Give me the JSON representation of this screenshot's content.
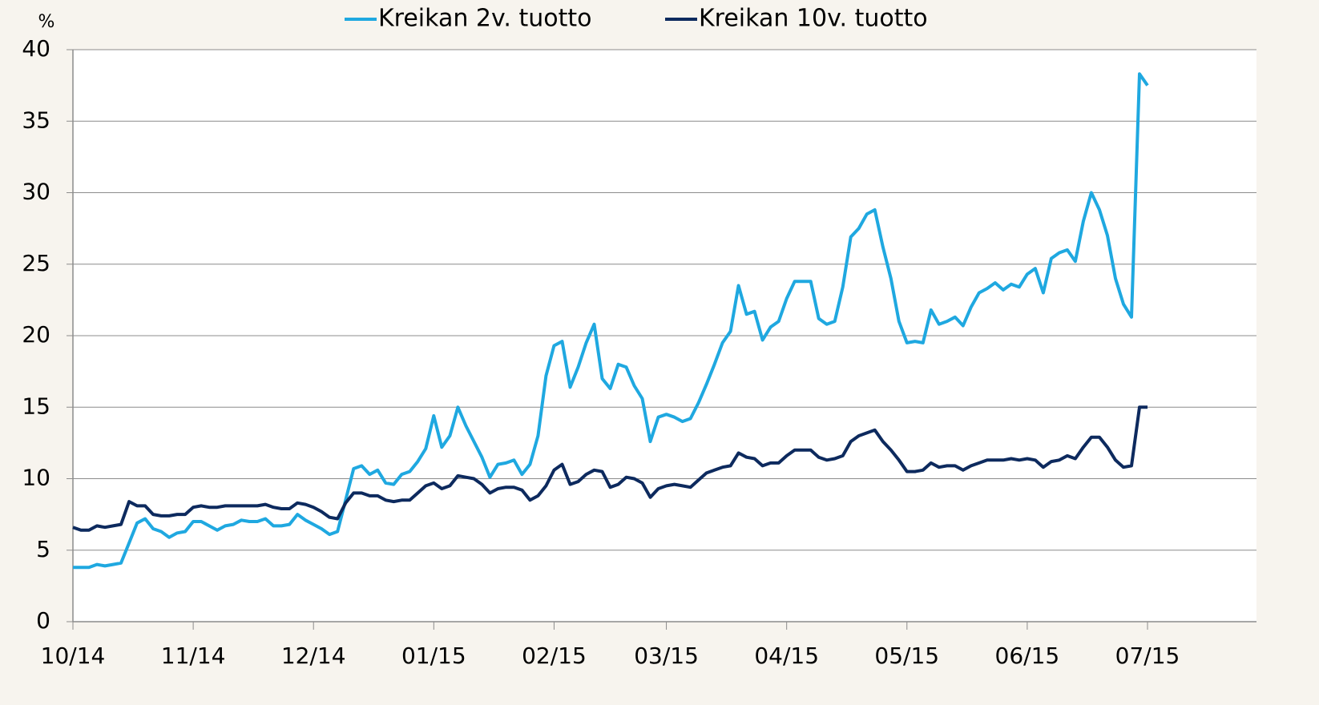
{
  "chart_data": {
    "type": "line",
    "ylabel": "%",
    "legend": "top",
    "grid": true,
    "ylim": [
      0,
      40
    ],
    "yticks": [
      0,
      5,
      10,
      15,
      20,
      25,
      30,
      35,
      40
    ],
    "categories": [
      "10/14",
      null,
      null,
      null,
      null,
      null,
      null,
      null,
      null,
      null,
      null,
      null,
      null,
      null,
      null,
      "11/14",
      null,
      null,
      null,
      null,
      null,
      null,
      null,
      null,
      null,
      null,
      null,
      null,
      null,
      null,
      "12/14",
      null,
      null,
      null,
      null,
      null,
      null,
      null,
      null,
      null,
      null,
      null,
      null,
      null,
      null,
      "01/15",
      null,
      null,
      null,
      null,
      null,
      null,
      null,
      null,
      null,
      null,
      null,
      null,
      null,
      null,
      "02/15",
      null,
      null,
      null,
      null,
      null,
      null,
      null,
      null,
      null,
      null,
      null,
      null,
      null,
      "03/15",
      null,
      null,
      null,
      null,
      null,
      null,
      null,
      null,
      null,
      null,
      null,
      null,
      null,
      null,
      "04/15",
      null,
      null,
      null,
      null,
      null,
      null,
      null,
      null,
      null,
      null,
      null,
      null,
      null,
      null,
      "05/15",
      null,
      null,
      null,
      null,
      null,
      null,
      null,
      null,
      null,
      null,
      null,
      null,
      null,
      null,
      "06/15",
      null,
      null,
      null,
      null,
      null,
      null,
      null,
      null,
      null,
      null,
      null,
      null,
      null,
      null,
      "07/15"
    ],
    "series": [
      {
        "name": "Kreikan 2v. tuotto",
        "color": "#1fa8e0",
        "values": [
          3.8,
          3.8,
          3.8,
          4.0,
          3.9,
          4.0,
          4.1,
          5.5,
          6.9,
          7.2,
          6.5,
          6.3,
          5.9,
          6.2,
          6.3,
          7.0,
          7.0,
          6.7,
          6.4,
          6.7,
          6.8,
          7.1,
          7.0,
          7.0,
          7.2,
          6.7,
          6.7,
          6.8,
          7.5,
          7.1,
          6.8,
          6.5,
          6.1,
          6.3,
          8.5,
          10.7,
          10.9,
          10.3,
          10.6,
          9.7,
          9.6,
          10.3,
          10.5,
          11.2,
          12.1,
          14.4,
          12.2,
          13.0,
          15.0,
          13.7,
          12.6,
          11.5,
          10.1,
          11.0,
          11.1,
          11.3,
          10.3,
          11.0,
          13.0,
          17.2,
          19.3,
          19.6,
          16.4,
          17.8,
          19.5,
          20.8,
          17.0,
          16.3,
          18.0,
          17.8,
          16.5,
          15.6,
          12.6,
          14.3,
          14.5,
          14.3,
          14.0,
          14.2,
          15.3,
          16.6,
          18.0,
          19.5,
          20.3,
          23.5,
          21.5,
          21.7,
          19.7,
          20.6,
          21.0,
          22.6,
          23.8,
          23.8,
          23.8,
          21.2,
          20.8,
          21.0,
          23.4,
          26.9,
          27.5,
          28.5,
          28.8,
          26.2,
          24.0,
          21.0,
          19.5,
          19.6,
          19.5,
          21.8,
          20.8,
          21.0,
          21.3,
          20.7,
          22.0,
          23.0,
          23.3,
          23.7,
          23.2,
          23.6,
          23.4,
          24.3,
          24.7,
          23.0,
          25.4,
          25.8,
          26.0,
          25.2,
          28.0,
          30.0,
          28.8,
          27.0,
          24.0,
          22.2,
          21.3,
          38.3,
          37.5
        ]
      },
      {
        "name": "Kreikan 10v. tuotto",
        "color": "#0d2a5e",
        "values": [
          6.6,
          6.4,
          6.4,
          6.7,
          6.6,
          6.7,
          6.8,
          8.4,
          8.1,
          8.1,
          7.5,
          7.4,
          7.4,
          7.5,
          7.5,
          8.0,
          8.1,
          8.0,
          8.0,
          8.1,
          8.1,
          8.1,
          8.1,
          8.1,
          8.2,
          8.0,
          7.9,
          7.9,
          8.3,
          8.2,
          8.0,
          7.7,
          7.3,
          7.2,
          8.3,
          9.0,
          9.0,
          8.8,
          8.8,
          8.5,
          8.4,
          8.5,
          8.5,
          9.0,
          9.5,
          9.7,
          9.3,
          9.5,
          10.2,
          10.1,
          10.0,
          9.6,
          9.0,
          9.3,
          9.4,
          9.4,
          9.2,
          8.5,
          8.8,
          9.5,
          10.6,
          11.0,
          9.6,
          9.8,
          10.3,
          10.6,
          10.5,
          9.4,
          9.6,
          10.1,
          10.0,
          9.7,
          8.7,
          9.3,
          9.5,
          9.6,
          9.5,
          9.4,
          9.9,
          10.4,
          10.6,
          10.8,
          10.9,
          11.8,
          11.5,
          11.4,
          10.9,
          11.1,
          11.1,
          11.6,
          12.0,
          12.0,
          12.0,
          11.5,
          11.3,
          11.4,
          11.6,
          12.6,
          13.0,
          13.2,
          13.4,
          12.6,
          12.0,
          11.3,
          10.5,
          10.5,
          10.6,
          11.1,
          10.8,
          10.9,
          10.9,
          10.6,
          10.9,
          11.1,
          11.3,
          11.3,
          11.3,
          11.4,
          11.3,
          11.4,
          11.3,
          10.8,
          11.2,
          11.3,
          11.6,
          11.4,
          12.2,
          12.9,
          12.9,
          12.2,
          11.3,
          10.8,
          10.9,
          15.0,
          15.0
        ]
      }
    ]
  }
}
